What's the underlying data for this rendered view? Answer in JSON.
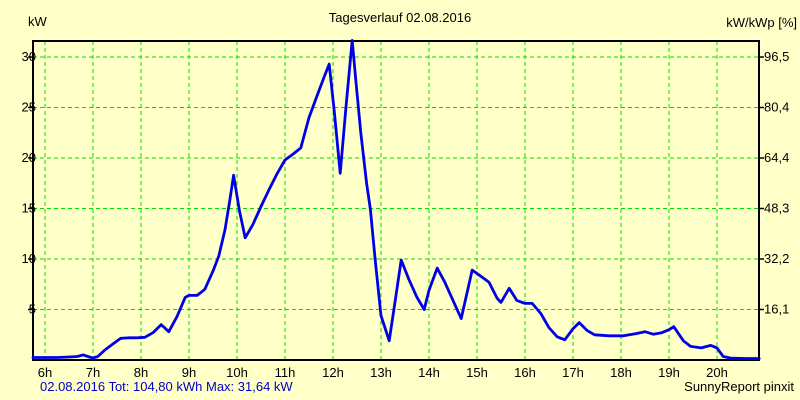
{
  "title": "Tagesverlauf 02.08.2016",
  "left_axis": {
    "label": "kW"
  },
  "right_axis": {
    "label": "kW/kWp [%]"
  },
  "footer": {
    "left": "02.08.2016 Tot: 104,80 kWh Max: 31,64 kW",
    "right": "SunnyReport pinxit"
  },
  "colors": {
    "background": "#FFFFC8",
    "grid": "#00DC00",
    "line": "#0000E8",
    "border": "#000000",
    "footer_text": "#0000C8",
    "tick_text": "#000000"
  },
  "chart_data": {
    "type": "line",
    "title": "Tagesverlauf 02.08.2016",
    "date": "02.08.2016",
    "total_kwh_label": "104,80",
    "max_kw_label": "31,64",
    "ylabel_left": "kW",
    "ylabel_right": "kW/kWp [%]",
    "x_unit": "h",
    "x_range_hours": [
      5.75,
      20.88
    ],
    "ylim_left_kw": [
      0,
      31.6
    ],
    "grid": true,
    "left_ticks": [
      {
        "label": "30",
        "kw": 30
      },
      {
        "label": "25",
        "kw": 25
      },
      {
        "label": "20",
        "kw": 20
      },
      {
        "label": "15",
        "kw": 15
      },
      {
        "label": "10",
        "kw": 10
      },
      {
        "label": "5",
        "kw": 5
      }
    ],
    "right_ticks": [
      {
        "label": "96,5",
        "kw": 30
      },
      {
        "label": "80,4",
        "kw": 25
      },
      {
        "label": "64,4",
        "kw": 20
      },
      {
        "label": "48,3",
        "kw": 15
      },
      {
        "label": "32,2",
        "kw": 10
      },
      {
        "label": "16,1",
        "kw": 5
      }
    ],
    "x_ticks": [
      {
        "label": "6h",
        "hour": 6
      },
      {
        "label": "7h",
        "hour": 7
      },
      {
        "label": "8h",
        "hour": 8
      },
      {
        "label": "9h",
        "hour": 9
      },
      {
        "label": "10h",
        "hour": 10
      },
      {
        "label": "11h",
        "hour": 11
      },
      {
        "label": "12h",
        "hour": 12
      },
      {
        "label": "13h",
        "hour": 13
      },
      {
        "label": "14h",
        "hour": 14
      },
      {
        "label": "15h",
        "hour": 15
      },
      {
        "label": "16h",
        "hour": 16
      },
      {
        "label": "17h",
        "hour": 17
      },
      {
        "label": "18h",
        "hour": 18
      },
      {
        "label": "19h",
        "hour": 19
      },
      {
        "label": "20h",
        "hour": 20
      }
    ],
    "series": [
      {
        "name": "power_kw",
        "points": [
          [
            5.75,
            0.25
          ],
          [
            6.0,
            0.25
          ],
          [
            6.25,
            0.25
          ],
          [
            6.5,
            0.3
          ],
          [
            6.67,
            0.35
          ],
          [
            6.8,
            0.5
          ],
          [
            6.92,
            0.3
          ],
          [
            7.0,
            0.2
          ],
          [
            7.1,
            0.35
          ],
          [
            7.25,
            1.0
          ],
          [
            7.42,
            1.6
          ],
          [
            7.58,
            2.15
          ],
          [
            7.75,
            2.2
          ],
          [
            7.92,
            2.2
          ],
          [
            8.08,
            2.25
          ],
          [
            8.25,
            2.7
          ],
          [
            8.42,
            3.5
          ],
          [
            8.58,
            2.8
          ],
          [
            8.75,
            4.3
          ],
          [
            8.92,
            6.2
          ],
          [
            9.0,
            6.4
          ],
          [
            9.17,
            6.4
          ],
          [
            9.33,
            7.0
          ],
          [
            9.5,
            8.8
          ],
          [
            9.62,
            10.3
          ],
          [
            9.75,
            12.9
          ],
          [
            9.85,
            15.8
          ],
          [
            9.93,
            18.3
          ],
          [
            10.05,
            14.8
          ],
          [
            10.17,
            12.1
          ],
          [
            10.33,
            13.4
          ],
          [
            10.5,
            15.2
          ],
          [
            10.67,
            16.9
          ],
          [
            10.83,
            18.4
          ],
          [
            11.0,
            19.8
          ],
          [
            11.17,
            20.4
          ],
          [
            11.33,
            21.0
          ],
          [
            11.5,
            24.0
          ],
          [
            11.67,
            26.2
          ],
          [
            11.83,
            28.2
          ],
          [
            11.92,
            29.3
          ],
          [
            12.03,
            24.5
          ],
          [
            12.15,
            18.5
          ],
          [
            12.28,
            25.5
          ],
          [
            12.4,
            31.64
          ],
          [
            12.48,
            27.5
          ],
          [
            12.58,
            22.5
          ],
          [
            12.7,
            17.5
          ],
          [
            12.78,
            14.9
          ],
          [
            12.88,
            9.9
          ],
          [
            13.0,
            4.4
          ],
          [
            13.17,
            1.9
          ],
          [
            13.3,
            6.0
          ],
          [
            13.42,
            9.9
          ],
          [
            13.58,
            8.0
          ],
          [
            13.75,
            6.2
          ],
          [
            13.9,
            5.0
          ],
          [
            14.0,
            6.9
          ],
          [
            14.17,
            9.1
          ],
          [
            14.33,
            7.7
          ],
          [
            14.5,
            5.9
          ],
          [
            14.67,
            4.1
          ],
          [
            14.9,
            8.9
          ],
          [
            15.08,
            8.3
          ],
          [
            15.25,
            7.7
          ],
          [
            15.42,
            6.1
          ],
          [
            15.5,
            5.7
          ],
          [
            15.67,
            7.1
          ],
          [
            15.83,
            5.9
          ],
          [
            16.0,
            5.6
          ],
          [
            16.15,
            5.6
          ],
          [
            16.33,
            4.6
          ],
          [
            16.5,
            3.2
          ],
          [
            16.67,
            2.3
          ],
          [
            16.83,
            2.0
          ],
          [
            17.0,
            3.1
          ],
          [
            17.13,
            3.7
          ],
          [
            17.3,
            2.9
          ],
          [
            17.45,
            2.5
          ],
          [
            17.75,
            2.4
          ],
          [
            18.05,
            2.4
          ],
          [
            18.3,
            2.6
          ],
          [
            18.5,
            2.8
          ],
          [
            18.67,
            2.55
          ],
          [
            18.85,
            2.7
          ],
          [
            19.0,
            3.0
          ],
          [
            19.1,
            3.3
          ],
          [
            19.3,
            1.9
          ],
          [
            19.45,
            1.35
          ],
          [
            19.67,
            1.2
          ],
          [
            19.87,
            1.45
          ],
          [
            20.0,
            1.2
          ],
          [
            20.13,
            0.35
          ],
          [
            20.3,
            0.18
          ],
          [
            20.6,
            0.15
          ],
          [
            20.88,
            0.15
          ]
        ]
      }
    ]
  }
}
